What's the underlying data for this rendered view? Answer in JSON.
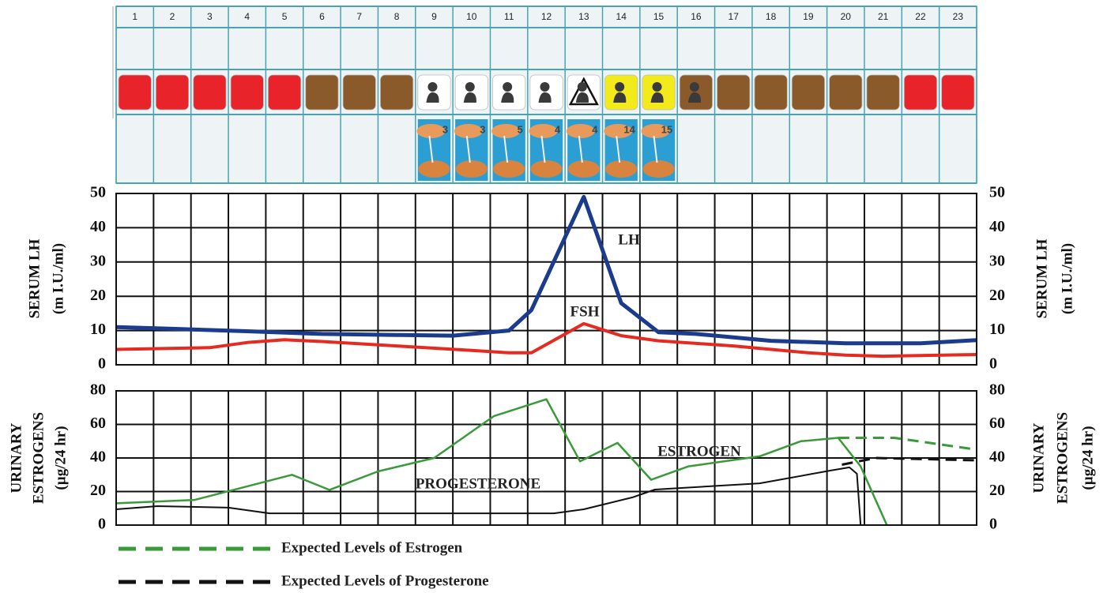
{
  "calendar": {
    "days": [
      1,
      2,
      3,
      4,
      5,
      6,
      7,
      8,
      9,
      10,
      11,
      12,
      13,
      14,
      15,
      16,
      17,
      18,
      19,
      20,
      21,
      22,
      23
    ],
    "colors": [
      "#e8232a",
      "#e8232a",
      "#e8232a",
      "#e8232a",
      "#e8232a",
      "#8b5a2b",
      "#8b5a2b",
      "#8b5a2b",
      "#ffffff",
      "#ffffff",
      "#ffffff",
      "#ffffff",
      "#ffffff",
      "#f2ea1a",
      "#f2ea1a",
      "#8b5a2b",
      "#8b5a2b",
      "#8b5a2b",
      "#8b5a2b",
      "#8b5a2b",
      "#8b5a2b",
      "#e8232a",
      "#e8232a"
    ],
    "photo_numbers": [
      null,
      null,
      null,
      null,
      null,
      null,
      null,
      null,
      3,
      3,
      5,
      4,
      4,
      14,
      15,
      null,
      null,
      null,
      null,
      null,
      null,
      null,
      null
    ]
  },
  "chart_data": [
    {
      "type": "line",
      "ylabel": [
        "SERUM LH",
        "(m I.U./ml)"
      ],
      "y2label": [
        "SERUM LH",
        "(m I.U./ml)"
      ],
      "xlim": [
        0.5,
        23.5
      ],
      "ylim": [
        0,
        50
      ],
      "yticks": [
        0,
        10,
        20,
        30,
        40,
        50
      ],
      "y2lim": [
        0,
        50
      ],
      "y2ticks": [
        0,
        10,
        20,
        30,
        40,
        50
      ],
      "grid": true,
      "series": [
        {
          "name": "LH",
          "color": "#1b3b8c",
          "style": "solid",
          "x": [
            0.5,
            2,
            4,
            6,
            8,
            9.5,
            11,
            11.6,
            13,
            14,
            15,
            16,
            18,
            20,
            22,
            23.5
          ],
          "values": [
            11,
            10.5,
            9.8,
            9,
            8.7,
            8.5,
            10,
            16,
            49,
            18,
            9.5,
            9,
            7,
            6.3,
            6.3,
            7.2
          ]
        },
        {
          "name": "FSH",
          "color": "#e52a20",
          "style": "solid",
          "x": [
            0.5,
            3,
            4,
            5,
            6,
            8,
            10,
            11,
            11.6,
            13,
            14,
            15,
            17,
            19,
            20,
            21,
            23.5
          ],
          "values": [
            4.5,
            5,
            6.5,
            7.3,
            6.8,
            5.5,
            4.2,
            3.5,
            3.5,
            12,
            8.5,
            7,
            5.5,
            3.5,
            2.8,
            2.5,
            3
          ]
        }
      ]
    },
    {
      "type": "line",
      "ylabel": [
        "URINARY",
        "ESTROGENS",
        "(µg/24 hr)"
      ],
      "y2label": [
        "URINARY",
        "ESTROGENS",
        "(µg/24 hr)"
      ],
      "xlim": [
        0.5,
        23.5
      ],
      "ylim": [
        0,
        80
      ],
      "yticks": [
        0,
        20,
        40,
        60,
        80
      ],
      "y2lim": [
        0,
        80
      ],
      "y2ticks": [
        0,
        20,
        40,
        60,
        80
      ],
      "grid": true,
      "series": [
        {
          "name": "ESTROGEN",
          "color": "#3a9a3a",
          "style": "solid",
          "x": [
            0.5,
            2.6,
            5.2,
            6.2,
            7.5,
            9,
            10.6,
            12,
            12.9,
            13.9,
            14.8,
            15.8,
            17.7,
            18.8,
            19.8,
            20.4,
            21.1
          ],
          "values": [
            13,
            15,
            30,
            21,
            32,
            40,
            65,
            75,
            38,
            49,
            27,
            35,
            41,
            50,
            52,
            35,
            0
          ]
        },
        {
          "name": "PROGESTERONE",
          "color": "#111111",
          "style": "solid",
          "x": [
            0.5,
            1.6,
            3.5,
            4.6,
            8,
            12.2,
            13,
            14.3,
            14.9,
            15.6,
            17.7,
            19.6,
            20.1,
            20.3,
            20.4
          ],
          "values": [
            9.4,
            11.3,
            10.4,
            7,
            7,
            7,
            9.4,
            16.5,
            21.2,
            22.1,
            24.9,
            32.5,
            34.4,
            30.6,
            0
          ]
        },
        {
          "name": "Expected Levels of Estrogen",
          "color": "#3a9a3a",
          "style": "dashed",
          "x": [
            19.8,
            21.3,
            23.5
          ],
          "values": [
            52,
            52,
            45
          ]
        },
        {
          "name": "Expected Levels of Progesterone",
          "color": "#111111",
          "style": "dashed",
          "x": [
            19.9,
            20.8,
            23.5
          ],
          "values": [
            36,
            40,
            38.6
          ]
        }
      ]
    }
  ]
}
